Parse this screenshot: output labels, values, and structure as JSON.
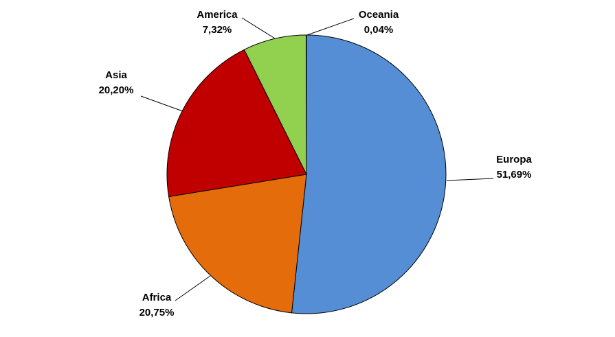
{
  "chart_data": {
    "type": "pie",
    "title": "",
    "slices": [
      {
        "label": "Europa",
        "value_label": "51,69%",
        "value": 51.69,
        "color": "#558ed5"
      },
      {
        "label": "Africa",
        "value_label": "20,75%",
        "value": 20.75,
        "color": "#e46c0a"
      },
      {
        "label": "Asia",
        "value_label": "20,20%",
        "value": 20.2,
        "color": "#c00000"
      },
      {
        "label": "America",
        "value_label": "7,32%",
        "value": 7.32,
        "color": "#92d050"
      },
      {
        "label": "Oceania",
        "value_label": "0,04%",
        "value": 0.04,
        "color": "#4472c4"
      }
    ],
    "start_angle": "12 o'clock",
    "direction": "clockwise",
    "legend": "none",
    "slice_border_color": "#000000"
  }
}
